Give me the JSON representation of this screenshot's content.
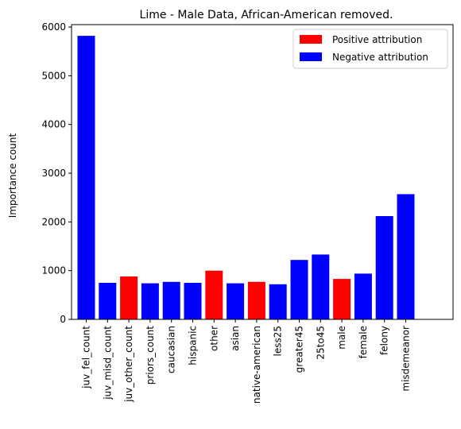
{
  "chart_data": {
    "type": "bar",
    "title": "Lime - Male Data, African-American removed.",
    "xlabel": "",
    "ylabel": "Importance count",
    "categories": [
      "juv_fel_count",
      "juv_misd_count",
      "juv_other_count",
      "priors_count",
      "caucasian",
      "hispanic",
      "other",
      "asian",
      "native-american",
      "less25",
      "greater45",
      "25to45",
      "male",
      "female",
      "felony",
      "misdemeanor"
    ],
    "values": [
      5820,
      750,
      880,
      740,
      770,
      750,
      1000,
      740,
      770,
      720,
      1220,
      1330,
      830,
      940,
      2120,
      2570
    ],
    "attribution": [
      "negative",
      "negative",
      "positive",
      "negative",
      "negative",
      "negative",
      "positive",
      "negative",
      "positive",
      "negative",
      "negative",
      "negative",
      "positive",
      "negative",
      "negative",
      "negative"
    ],
    "ylim": [
      0,
      6050
    ],
    "yticks": [
      0,
      1000,
      2000,
      3000,
      4000,
      5000,
      6000
    ],
    "grid": false,
    "legend": {
      "placement": "top-right",
      "entries": [
        {
          "key": "positive",
          "label": "Positive attribution",
          "color": "#ff0000"
        },
        {
          "key": "negative",
          "label": "Negative attribution",
          "color": "#0000ff"
        }
      ]
    }
  }
}
